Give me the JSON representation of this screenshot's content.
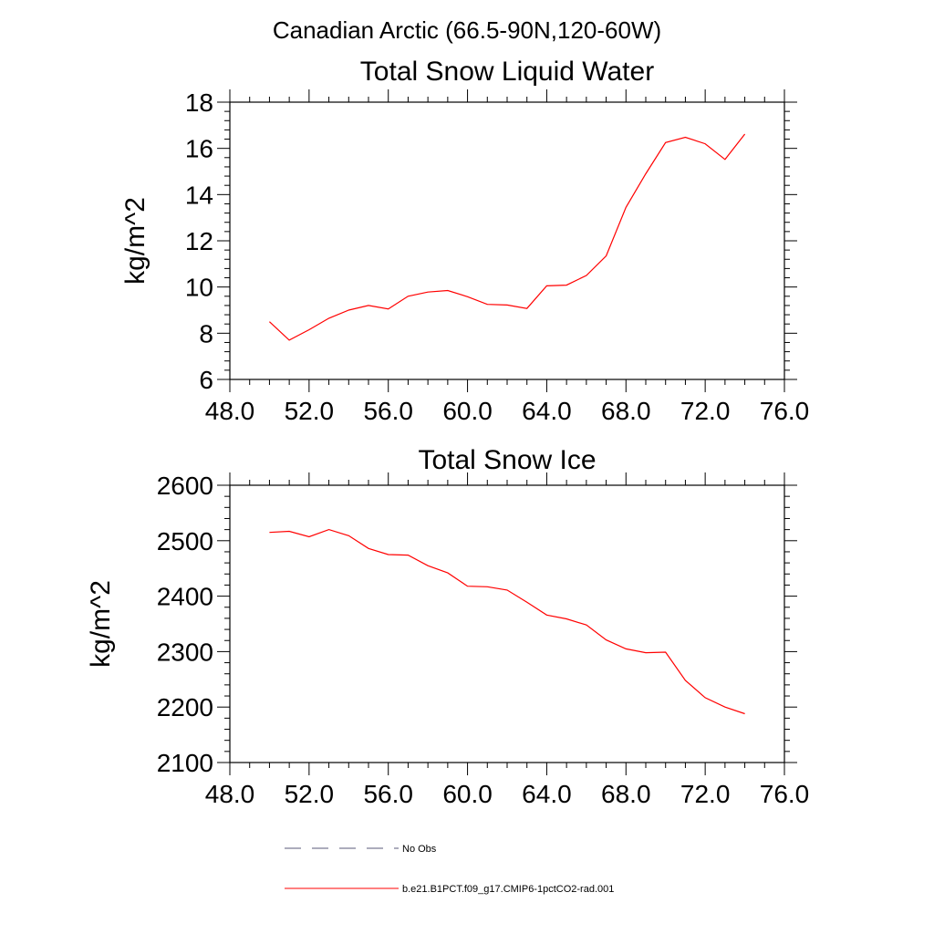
{
  "figure_title": "Canadian Arctic (66.5-90N,120-60W)",
  "chart_data": [
    {
      "type": "line",
      "title": "Total Snow Liquid Water",
      "xlabel": "",
      "ylabel": "kg/m^2",
      "xlim": [
        48,
        76
      ],
      "ylim": [
        6,
        18
      ],
      "x_ticks": [
        "48.0",
        "52.0",
        "56.0",
        "60.0",
        "64.0",
        "68.0",
        "72.0",
        "76.0"
      ],
      "y_ticks": [
        "6",
        "8",
        "10",
        "12",
        "14",
        "16",
        "18"
      ],
      "grid": false,
      "series": [
        {
          "color": "#ff0000",
          "x": [
            50,
            51,
            52,
            53,
            54,
            55,
            56,
            57,
            58,
            59,
            60,
            61,
            62,
            63,
            64,
            65,
            66,
            67,
            68,
            69,
            70,
            71,
            72,
            73,
            74
          ],
          "values": [
            8.5,
            7.7,
            8.15,
            8.65,
            9.0,
            9.2,
            9.05,
            9.6,
            9.78,
            9.85,
            9.58,
            9.25,
            9.22,
            9.07,
            10.05,
            10.08,
            10.5,
            11.35,
            13.45,
            14.9,
            16.25,
            16.48,
            16.2,
            15.52,
            16.62
          ]
        }
      ]
    },
    {
      "type": "line",
      "title": "Total Snow Ice",
      "xlabel": "",
      "ylabel": "kg/m^2",
      "xlim": [
        48,
        76
      ],
      "ylim": [
        2100,
        2600
      ],
      "x_ticks": [
        "48.0",
        "52.0",
        "56.0",
        "60.0",
        "64.0",
        "68.0",
        "72.0",
        "76.0"
      ],
      "y_ticks": [
        "2100",
        "2200",
        "2300",
        "2400",
        "2500",
        "2600"
      ],
      "grid": false,
      "series": [
        {
          "color": "#ff0000",
          "x": [
            50,
            51,
            52,
            53,
            54,
            55,
            56,
            57,
            58,
            59,
            60,
            61,
            62,
            63,
            64,
            65,
            66,
            67,
            68,
            69,
            70,
            71,
            72,
            73,
            74
          ],
          "values": [
            2515,
            2517,
            2507,
            2520,
            2509,
            2486,
            2475,
            2474,
            2455,
            2442,
            2418,
            2417,
            2411,
            2389,
            2366,
            2359,
            2348,
            2321,
            2305,
            2298,
            2299,
            2248,
            2217,
            2200,
            2188
          ]
        }
      ]
    }
  ],
  "legend": {
    "placement": "bottom",
    "entries": [
      {
        "label": "No Obs",
        "style": "dashed",
        "color": "#5a5a7a"
      },
      {
        "label": "b.e21.B1PCT.f09_g17.CMIP6-1pctCO2-rad.001",
        "style": "solid",
        "color": "#ff0000"
      }
    ]
  }
}
